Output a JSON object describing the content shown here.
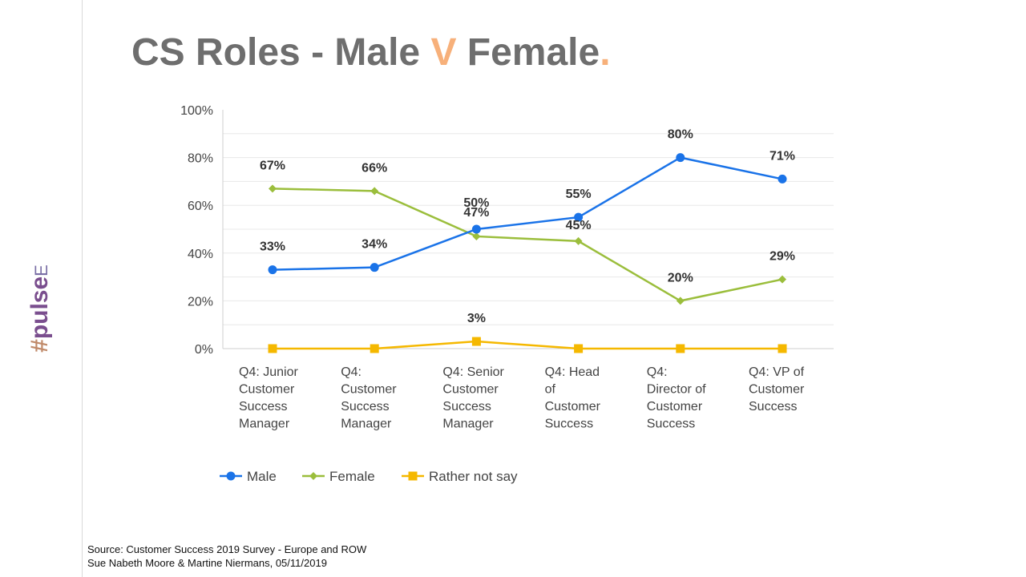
{
  "brand": {
    "hash": "#",
    "word": "pulse",
    "tail": "E"
  },
  "title": {
    "part1": "CS Roles - Male ",
    "accent_letter": "V",
    "part2": " Female",
    "dot": "."
  },
  "colors": {
    "title_gray": "#6e6e6e",
    "title_accent": "#f7b07a",
    "male": "#1a73e8",
    "female": "#9bbe3c",
    "rather_not_say": "#f5b800"
  },
  "chart_data": {
    "type": "line",
    "categories": [
      [
        "Q4: Junior",
        "Customer",
        "Success",
        "Manager"
      ],
      [
        "Q4:",
        "Customer",
        "Success",
        "Manager"
      ],
      [
        "Q4: Senior",
        "Customer",
        "Success",
        "Manager"
      ],
      [
        "Q4: Head",
        "of",
        "Customer",
        "Success"
      ],
      [
        "Q4:",
        "Director of",
        "Customer",
        "Success"
      ],
      [
        "Q4: VP of",
        "Customer",
        "Success"
      ]
    ],
    "ylim": [
      0,
      100
    ],
    "yticks": [
      0,
      20,
      40,
      60,
      80,
      100
    ],
    "ytick_labels": [
      "0%",
      "20%",
      "40%",
      "60%",
      "80%",
      "100%"
    ],
    "grid": true,
    "legend_position": "bottom-left",
    "series": [
      {
        "name": "Male",
        "marker": "circle",
        "values": [
          33,
          34,
          50,
          55,
          80,
          71
        ],
        "labels": [
          "33%",
          "34%",
          "50%",
          "55%",
          "80%",
          "71%"
        ]
      },
      {
        "name": "Female",
        "marker": "diamond",
        "values": [
          67,
          66,
          47,
          45,
          20,
          29
        ],
        "labels": [
          "67%",
          "66%",
          "47%",
          "45%",
          "20%",
          "29%"
        ]
      },
      {
        "name": "Rather not say",
        "marker": "square",
        "values": [
          0,
          0,
          3,
          0,
          0,
          0
        ],
        "labels": [
          "",
          "",
          "3%",
          "",
          "",
          ""
        ]
      }
    ]
  },
  "source": {
    "line1": "Source: Customer Success 2019 Survey - Europe and ROW",
    "line2": "Sue Nabeth Moore & Martine Niermans, 05/11/2019"
  }
}
